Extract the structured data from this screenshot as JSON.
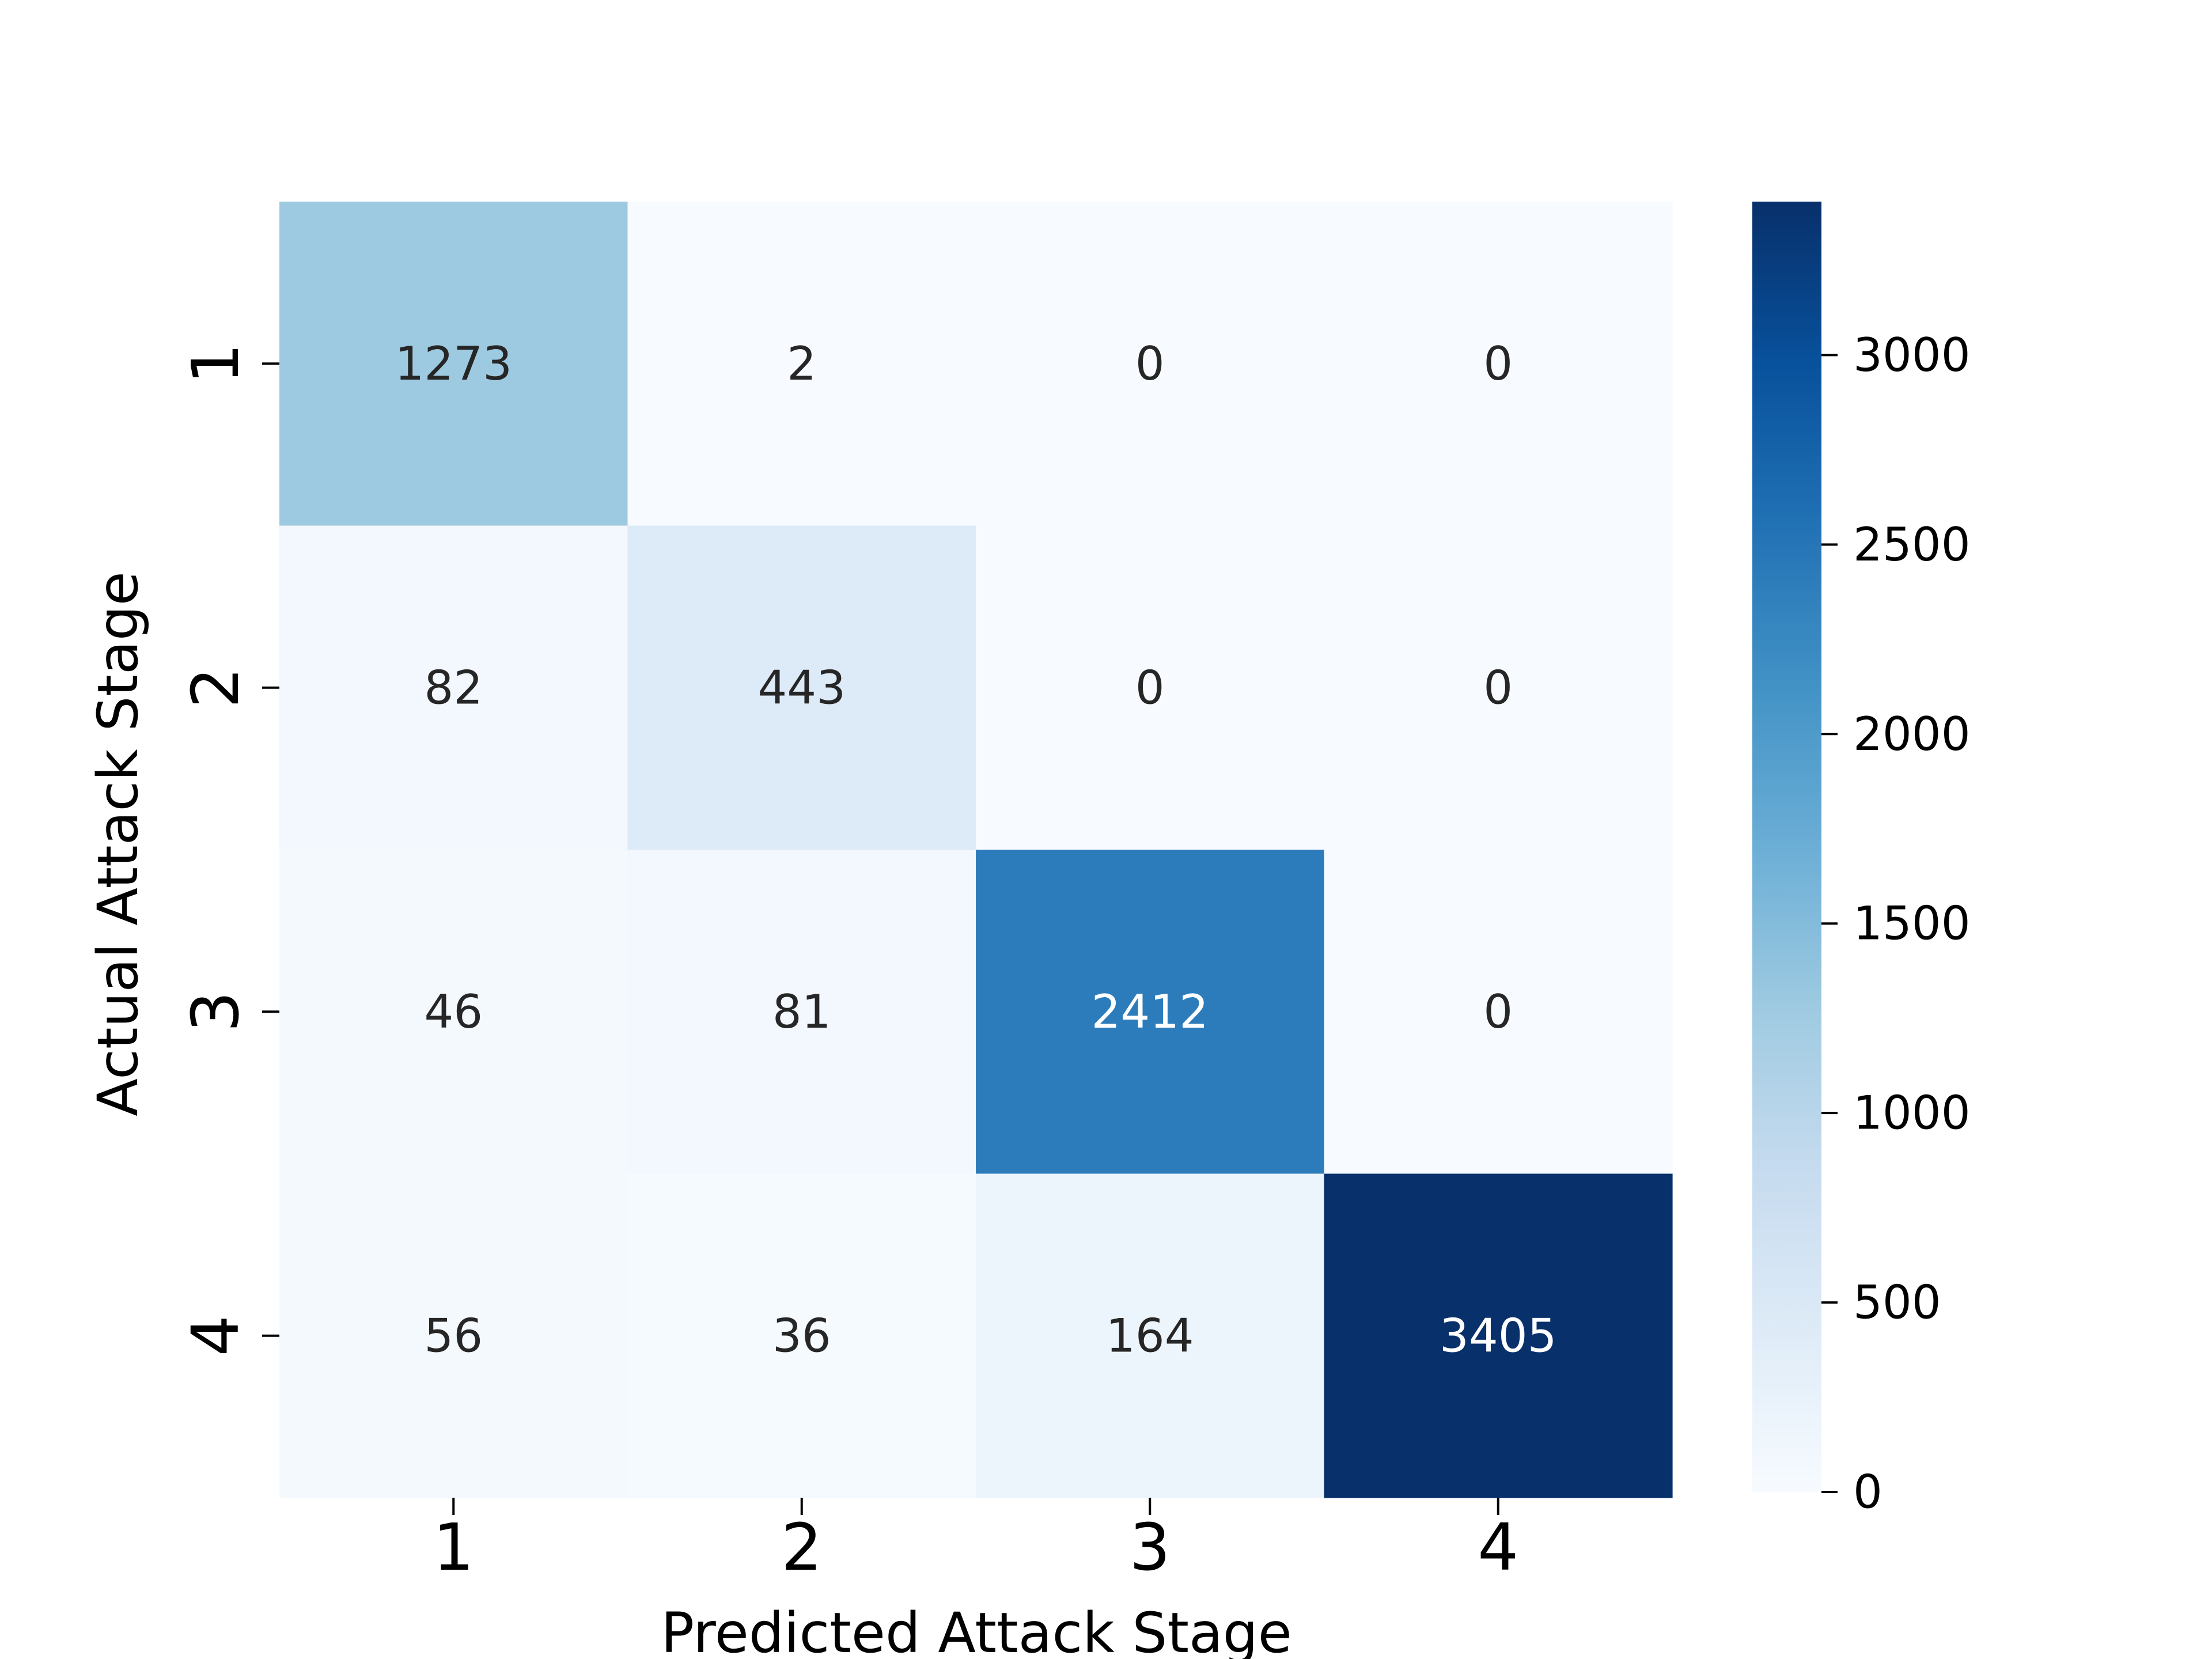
{
  "chart_data": {
    "type": "heatmap",
    "title": "",
    "xlabel": "Predicted Attack Stage",
    "ylabel": "Actual Attack Stage",
    "x_categories": [
      "1",
      "2",
      "3",
      "4"
    ],
    "y_categories": [
      "1",
      "2",
      "3",
      "4"
    ],
    "values": [
      [
        1273,
        2,
        0,
        0
      ],
      [
        82,
        443,
        0,
        0
      ],
      [
        46,
        81,
        2412,
        0
      ],
      [
        56,
        36,
        164,
        3405
      ]
    ],
    "colorscale": "Blues",
    "color_range": [
      0,
      3405
    ],
    "colorbar_ticks": [
      "0",
      "500",
      "1000",
      "1500",
      "2000",
      "2500",
      "3000"
    ],
    "colorbar_tick_values": [
      0,
      500,
      1000,
      1500,
      2000,
      2500,
      3000
    ],
    "grid": false,
    "legend": "colorbar-right"
  }
}
